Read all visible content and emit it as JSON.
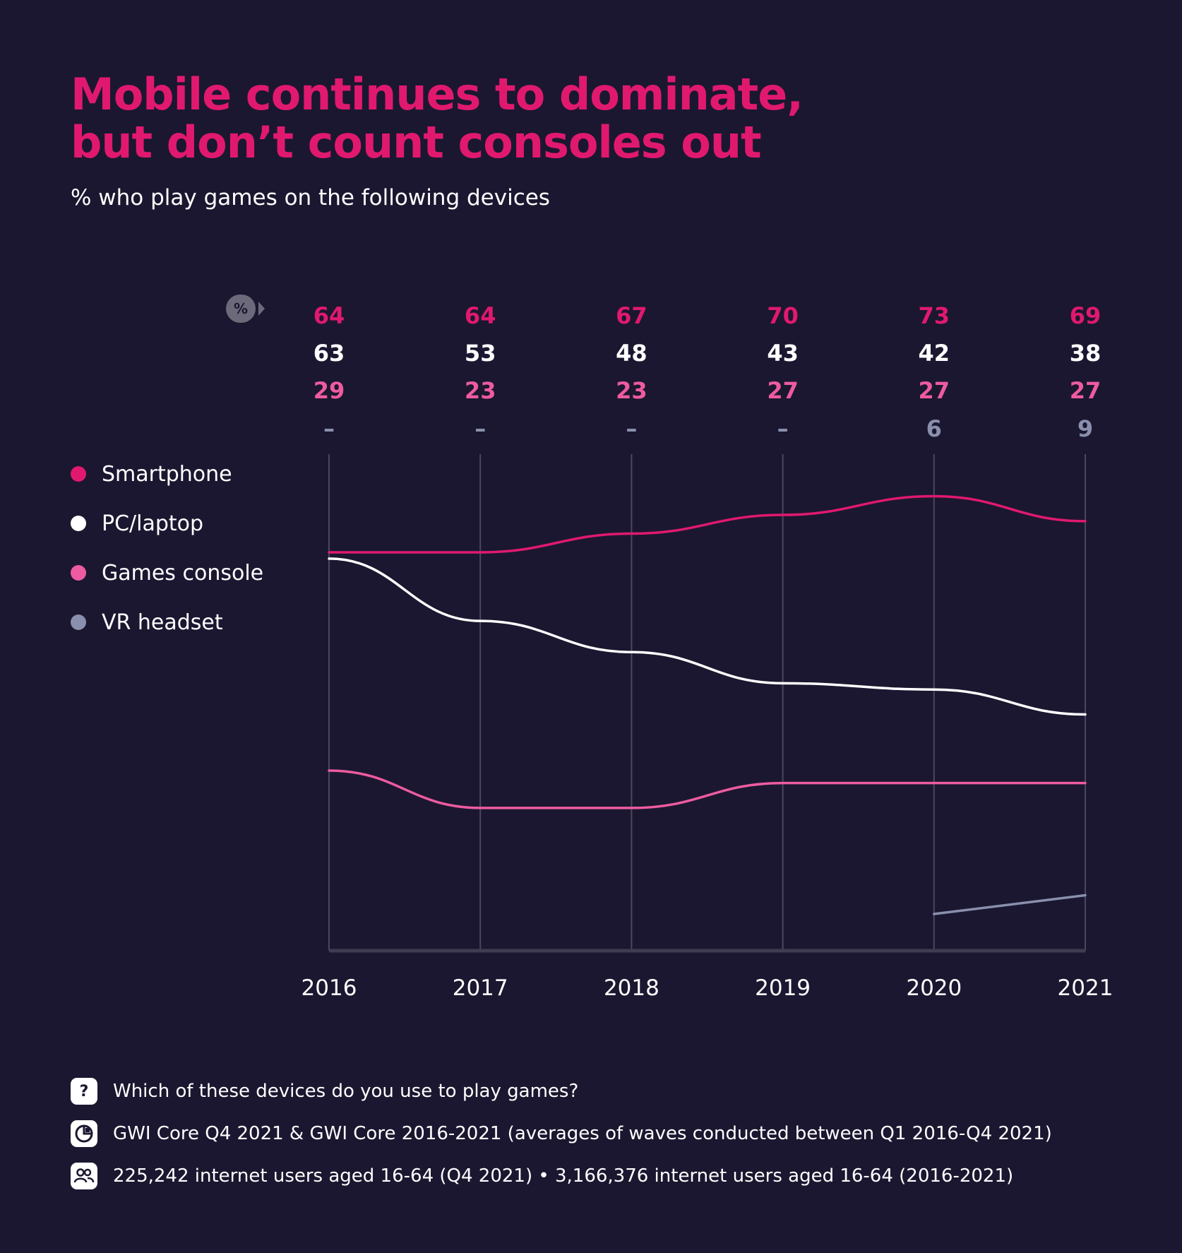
{
  "title_line1": "Mobile continues to dominate,",
  "title_line2": "but don’t count consoles out",
  "subtitle": "% who play games on the following devices",
  "percent_badge": "%",
  "colors": {
    "background": "#1b1730",
    "title": "#e0196f",
    "smartphone": "#e0196f",
    "pc": "#ffffff",
    "console": "#ee5ba0",
    "vr": "#8a8fae",
    "grid": "#4a4760",
    "axis": "#3f3c52"
  },
  "chart_data": {
    "type": "line",
    "title": "% who play games on the following devices",
    "x": [
      "2016",
      "2017",
      "2018",
      "2019",
      "2020",
      "2021"
    ],
    "ylim": [
      0,
      80
    ],
    "grid": true,
    "legend_position": "left",
    "series": [
      {
        "key": "smartphone",
        "name": "Smartphone",
        "labels": [
          "64",
          "64",
          "67",
          "70",
          "73",
          "69"
        ],
        "values": [
          64,
          64,
          67,
          70,
          73,
          69
        ]
      },
      {
        "key": "pc",
        "name": "PC/laptop",
        "labels": [
          "63",
          "53",
          "48",
          "43",
          "42",
          "38"
        ],
        "values": [
          63,
          53,
          48,
          43,
          42,
          38
        ]
      },
      {
        "key": "console",
        "name": "Games console",
        "labels": [
          "29",
          "23",
          "23",
          "27",
          "27",
          "27"
        ],
        "values": [
          29,
          23,
          23,
          27,
          27,
          27
        ]
      },
      {
        "key": "vr",
        "name": "VR headset",
        "labels": [
          "–",
          "–",
          "–",
          "–",
          "6",
          "9"
        ],
        "values": [
          null,
          null,
          null,
          null,
          6,
          9
        ]
      }
    ]
  },
  "footer": {
    "question_icon": "?",
    "question": "Which of these devices do you use to play games?",
    "source": "GWI Core Q4 2021 & GWI Core 2016-2021 (averages of waves conducted between Q1 2016-Q4 2021)",
    "base": "225,242 internet users aged 16-64 (Q4 2021) • 3,166,376 internet users aged 16-64 (2016-2021)"
  }
}
